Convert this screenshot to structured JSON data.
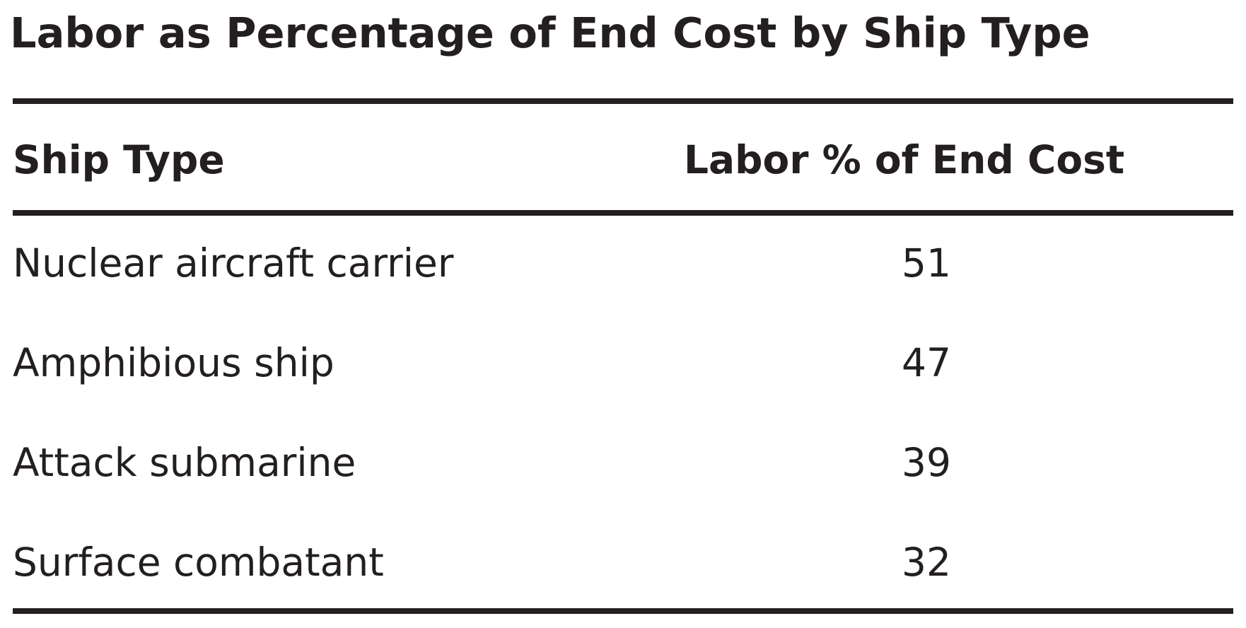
{
  "title": "Labor as Percentage of End Cost by Ship Type",
  "table": {
    "headers": {
      "ship_type": "Ship Type",
      "labor_pct": "Labor % of End Cost"
    },
    "rows": [
      {
        "ship_type": "Nuclear aircraft carrier",
        "labor_pct": "51"
      },
      {
        "ship_type": "Amphibious ship",
        "labor_pct": "47"
      },
      {
        "ship_type": "Attack submarine",
        "labor_pct": "39"
      },
      {
        "ship_type": "Surface combatant",
        "labor_pct": "32"
      }
    ]
  }
}
